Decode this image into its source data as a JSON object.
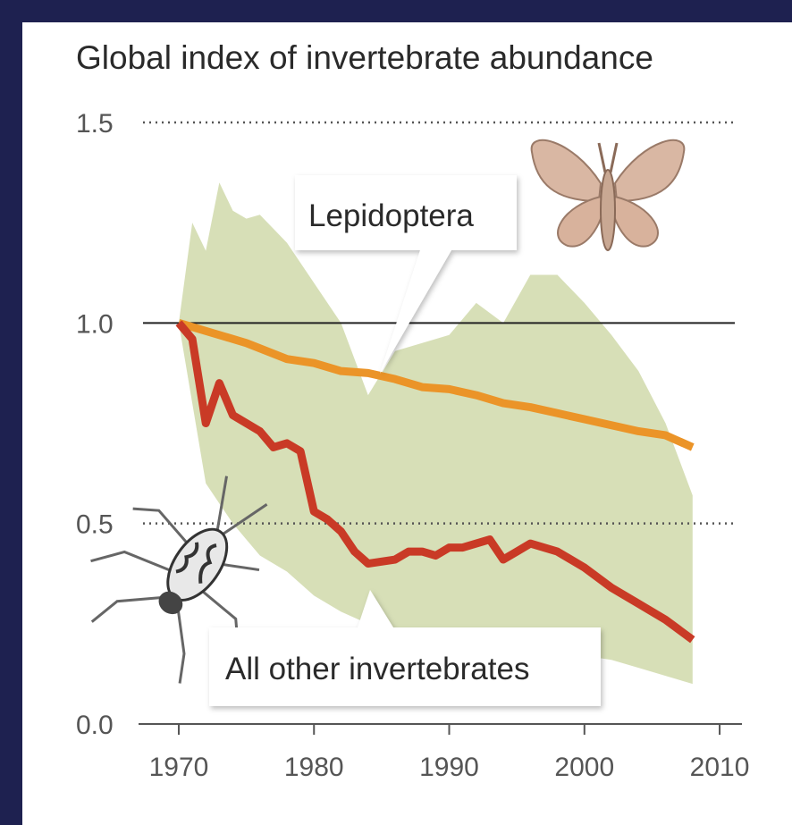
{
  "chart_data": {
    "type": "line",
    "title": "Global index of invertebrate abundance",
    "xlim": [
      1967,
      2012
    ],
    "ylim": [
      0,
      1.5
    ],
    "xticks": [
      1970,
      1980,
      1990,
      2000,
      2010
    ],
    "yticks": [
      {
        "value": 0,
        "label": "0.0"
      },
      0.5,
      {
        "value": 1,
        "label": "1.0"
      },
      1.5
    ],
    "band": {
      "color": "#d7dfb7",
      "x": [
        1970,
        1971,
        1972,
        1973,
        1974,
        1975,
        1976,
        1978,
        1980,
        1982,
        1984,
        1986,
        1988,
        1990,
        1992,
        1994,
        1996,
        1998,
        2000,
        2002,
        2004,
        2006,
        2008
      ],
      "upper": [
        1.0,
        1.25,
        1.18,
        1.35,
        1.28,
        1.26,
        1.27,
        1.2,
        1.1,
        1.0,
        0.82,
        0.93,
        0.95,
        0.97,
        1.05,
        1.0,
        1.12,
        1.12,
        1.05,
        0.97,
        0.88,
        0.75,
        0.57
      ],
      "lower": [
        1.0,
        0.8,
        0.6,
        0.55,
        0.5,
        0.46,
        0.42,
        0.38,
        0.32,
        0.28,
        0.25,
        0.23,
        0.22,
        0.21,
        0.21,
        0.2,
        0.19,
        0.18,
        0.17,
        0.16,
        0.14,
        0.12,
        0.1
      ]
    },
    "series": [
      {
        "name": "Lepidoptera",
        "color": "#eb9428",
        "x": [
          1970,
          1975,
          1978,
          1980,
          1982,
          1984,
          1986,
          1988,
          1990,
          1992,
          1994,
          1996,
          1998,
          2000,
          2002,
          2004,
          2006,
          2008
        ],
        "values": [
          1.0,
          0.95,
          0.91,
          0.9,
          0.88,
          0.875,
          0.86,
          0.84,
          0.835,
          0.82,
          0.8,
          0.79,
          0.775,
          0.76,
          0.745,
          0.73,
          0.72,
          0.69
        ]
      },
      {
        "name": "All other invertebrates",
        "color": "#c93a26",
        "x": [
          1970,
          1971,
          1972,
          1973,
          1974,
          1975,
          1976,
          1977,
          1978,
          1979,
          1980,
          1981,
          1982,
          1983,
          1984,
          1986,
          1987,
          1988,
          1989,
          1990,
          1991,
          1992,
          1993,
          1994,
          1995,
          1996,
          1997,
          1998,
          2000,
          2002,
          2004,
          2006,
          2008
        ],
        "values": [
          1.0,
          0.96,
          0.75,
          0.85,
          0.77,
          0.75,
          0.73,
          0.69,
          0.7,
          0.68,
          0.53,
          0.51,
          0.48,
          0.43,
          0.4,
          0.41,
          0.43,
          0.43,
          0.42,
          0.44,
          0.44,
          0.45,
          0.46,
          0.41,
          0.43,
          0.45,
          0.44,
          0.43,
          0.39,
          0.34,
          0.3,
          0.26,
          0.21
        ]
      }
    ]
  }
}
